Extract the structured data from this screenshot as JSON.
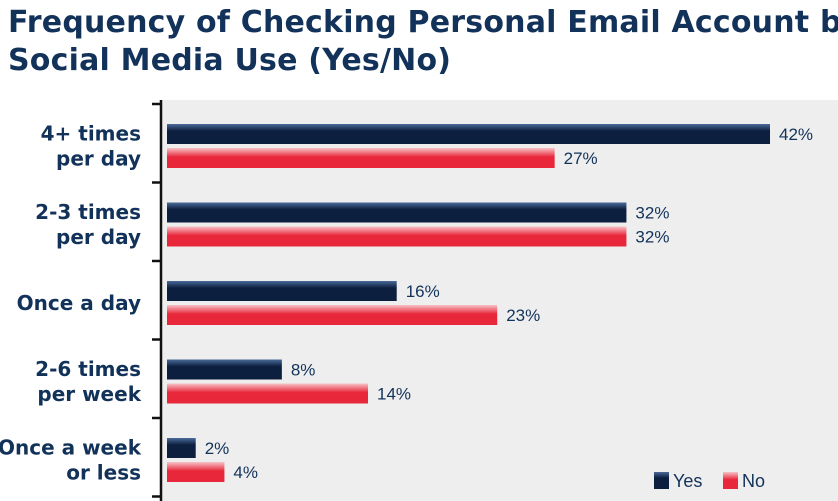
{
  "colors": {
    "title": "#12325a",
    "yes_dark": "#0d1f3f",
    "yes_light": "#4a6a99",
    "no_main": "#e8283a",
    "no_light": "#f7c2c8",
    "plot_bg": "#eeeeee"
  },
  "chart_data": {
    "type": "bar",
    "orientation": "horizontal",
    "title": "Frequency of Checking Personal Email Account by",
    "subtitle": "Social Media Use (Yes/No)",
    "categories": [
      [
        "4+ times",
        "per day"
      ],
      [
        "2-3 times",
        "per day"
      ],
      [
        "Once a day"
      ],
      [
        "2-6 times",
        "per week"
      ],
      [
        "Once a week",
        "or less"
      ]
    ],
    "series": [
      {
        "name": "Yes",
        "values": [
          42,
          32,
          16,
          8,
          2
        ]
      },
      {
        "name": "No",
        "values": [
          27,
          32,
          23,
          14,
          4
        ]
      }
    ],
    "value_suffix": "%",
    "xlim": [
      0,
      42
    ],
    "grid": false,
    "legend_position": "bottom-right"
  }
}
